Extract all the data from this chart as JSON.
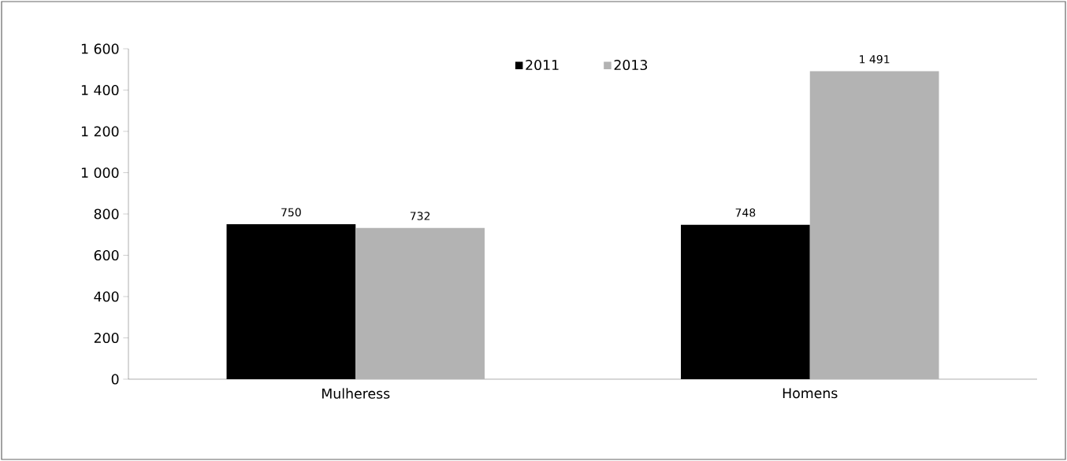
{
  "chart_data": {
    "type": "bar",
    "categories": [
      "Mulheress",
      "Homens"
    ],
    "series": [
      {
        "name": "2011",
        "color": "#000000",
        "values": [
          750,
          748
        ],
        "value_labels": [
          "750",
          "748"
        ]
      },
      {
        "name": "2013",
        "color": "#b3b3b3",
        "values": [
          732,
          1491
        ],
        "value_labels": [
          "732",
          "1 491"
        ]
      }
    ],
    "ylim": [
      0,
      1600
    ],
    "yticks": [
      0,
      200,
      400,
      600,
      800,
      {
        "value": 1000,
        "label": "1 000"
      },
      {
        "value": 1200,
        "label": "1 200"
      },
      {
        "value": 1400,
        "label": "1 400"
      },
      {
        "value": 1600,
        "label": "1 600"
      }
    ],
    "grid": false,
    "legend": "top"
  }
}
